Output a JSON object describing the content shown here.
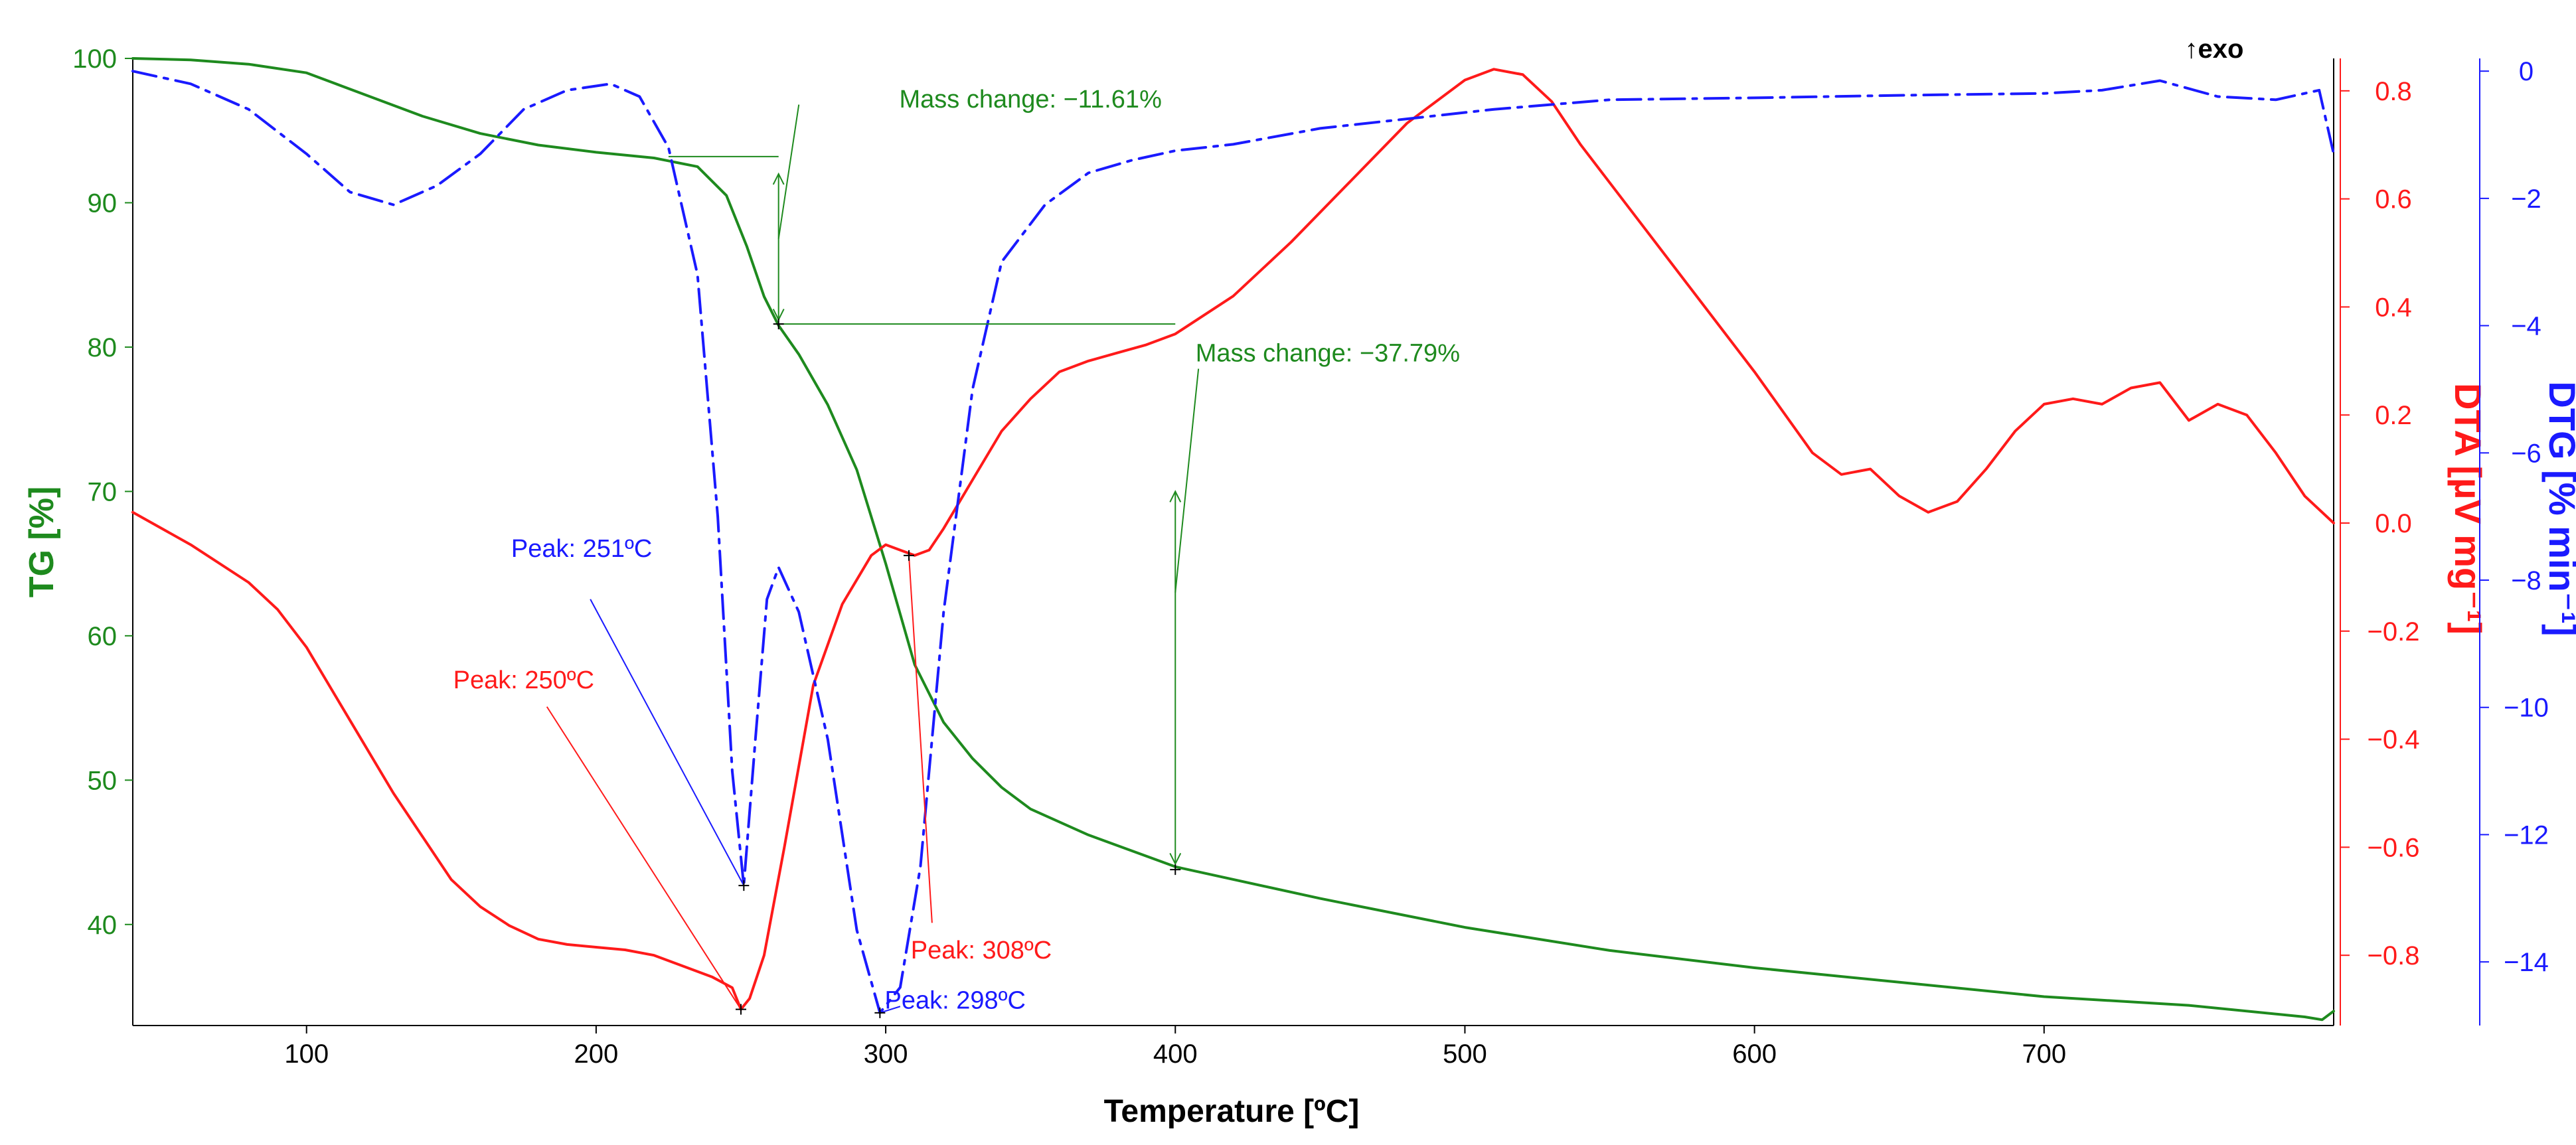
{
  "chart_data": {
    "type": "line",
    "title": "",
    "xlabel": "Temperature [ºC]",
    "xlim": [
      40,
      800
    ],
    "xticks": [
      100,
      200,
      300,
      400,
      500,
      600,
      700
    ],
    "axes": {
      "tg": {
        "label": "TG [%]",
        "color": "#1e8a1e",
        "ylim": [
          33,
          100
        ],
        "ticks": [
          40,
          50,
          60,
          70,
          80,
          90,
          100
        ]
      },
      "dta": {
        "label": "DTA [µV mg⁻¹]",
        "color": "#ff1a1a",
        "ylim": [
          -0.93,
          0.86
        ],
        "ticks": [
          -0.8,
          -0.6,
          -0.4,
          -0.2,
          0.0,
          0.2,
          0.4,
          0.6,
          0.8
        ],
        "tick_labels": [
          "−0.8",
          "−0.6",
          "−0.4",
          "−0.2",
          "0.0",
          "0.2",
          "0.4",
          "0.6",
          "0.8"
        ]
      },
      "dtg": {
        "label": "DTG [% min⁻¹]",
        "color": "#1a1aff",
        "ylim": [
          -15,
          0.2
        ],
        "ticks": [
          -14,
          -12,
          -10,
          -8,
          -6,
          -4,
          -2,
          0
        ],
        "tick_labels": [
          "−14",
          "−12",
          "−10",
          "−8",
          "−6",
          "−4",
          "−2",
          "0"
        ]
      }
    },
    "series": [
      {
        "name": "TG",
        "axis": "tg",
        "color": "#1e8a1e",
        "dash": "solid",
        "points": [
          [
            40,
            100
          ],
          [
            60,
            99.9
          ],
          [
            80,
            99.6
          ],
          [
            100,
            99
          ],
          [
            120,
            97.5
          ],
          [
            140,
            96
          ],
          [
            160,
            94.8
          ],
          [
            180,
            94
          ],
          [
            200,
            93.5
          ],
          [
            220,
            93.1
          ],
          [
            235,
            92.5
          ],
          [
            245,
            90.5
          ],
          [
            252,
            87
          ],
          [
            258,
            83.5
          ],
          [
            263,
            81.5
          ],
          [
            270,
            79.5
          ],
          [
            280,
            76
          ],
          [
            290,
            71.5
          ],
          [
            300,
            65
          ],
          [
            310,
            58
          ],
          [
            320,
            54
          ],
          [
            330,
            51.5
          ],
          [
            340,
            49.5
          ],
          [
            350,
            48
          ],
          [
            370,
            46.2
          ],
          [
            400,
            44
          ],
          [
            450,
            41.8
          ],
          [
            500,
            39.8
          ],
          [
            550,
            38.2
          ],
          [
            600,
            37
          ],
          [
            650,
            36
          ],
          [
            700,
            35
          ],
          [
            750,
            34.4
          ],
          [
            790,
            33.6
          ],
          [
            796,
            33.4
          ],
          [
            800,
            34
          ]
        ]
      },
      {
        "name": "DTA",
        "axis": "dta",
        "color": "#ff1a1a",
        "dash": "solid",
        "points": [
          [
            40,
            0.02
          ],
          [
            60,
            -0.04
          ],
          [
            80,
            -0.11
          ],
          [
            90,
            -0.16
          ],
          [
            100,
            -0.23
          ],
          [
            110,
            -0.32
          ],
          [
            120,
            -0.41
          ],
          [
            130,
            -0.5
          ],
          [
            140,
            -0.58
          ],
          [
            150,
            -0.66
          ],
          [
            160,
            -0.71
          ],
          [
            170,
            -0.745
          ],
          [
            180,
            -0.77
          ],
          [
            190,
            -0.78
          ],
          [
            200,
            -0.785
          ],
          [
            210,
            -0.79
          ],
          [
            220,
            -0.8
          ],
          [
            230,
            -0.82
          ],
          [
            240,
            -0.84
          ],
          [
            247,
            -0.86
          ],
          [
            250,
            -0.9
          ],
          [
            253,
            -0.88
          ],
          [
            258,
            -0.8
          ],
          [
            265,
            -0.6
          ],
          [
            275,
            -0.3
          ],
          [
            285,
            -0.15
          ],
          [
            295,
            -0.06
          ],
          [
            300,
            -0.04
          ],
          [
            305,
            -0.05
          ],
          [
            310,
            -0.06
          ],
          [
            315,
            -0.05
          ],
          [
            320,
            -0.01
          ],
          [
            330,
            0.08
          ],
          [
            340,
            0.17
          ],
          [
            350,
            0.23
          ],
          [
            360,
            0.28
          ],
          [
            370,
            0.3
          ],
          [
            380,
            0.315
          ],
          [
            390,
            0.33
          ],
          [
            400,
            0.35
          ],
          [
            420,
            0.42
          ],
          [
            440,
            0.52
          ],
          [
            460,
            0.63
          ],
          [
            480,
            0.74
          ],
          [
            500,
            0.82
          ],
          [
            510,
            0.84
          ],
          [
            520,
            0.83
          ],
          [
            530,
            0.78
          ],
          [
            540,
            0.7
          ],
          [
            560,
            0.56
          ],
          [
            580,
            0.42
          ],
          [
            600,
            0.28
          ],
          [
            620,
            0.13
          ],
          [
            630,
            0.09
          ],
          [
            640,
            0.1
          ],
          [
            650,
            0.05
          ],
          [
            660,
            0.02
          ],
          [
            670,
            0.04
          ],
          [
            680,
            0.1
          ],
          [
            690,
            0.17
          ],
          [
            700,
            0.22
          ],
          [
            710,
            0.23
          ],
          [
            720,
            0.22
          ],
          [
            730,
            0.25
          ],
          [
            740,
            0.26
          ],
          [
            750,
            0.19
          ],
          [
            760,
            0.22
          ],
          [
            770,
            0.2
          ],
          [
            780,
            0.13
          ],
          [
            790,
            0.05
          ],
          [
            800,
            0.0
          ]
        ]
      },
      {
        "name": "DTG",
        "axis": "dtg",
        "color": "#1a1aff",
        "dash": "dashdot",
        "points": [
          [
            40,
            0
          ],
          [
            60,
            -0.2
          ],
          [
            80,
            -0.6
          ],
          [
            100,
            -1.3
          ],
          [
            115,
            -1.9
          ],
          [
            130,
            -2.1
          ],
          [
            145,
            -1.8
          ],
          [
            160,
            -1.3
          ],
          [
            175,
            -0.6
          ],
          [
            190,
            -0.3
          ],
          [
            205,
            -0.2
          ],
          [
            215,
            -0.4
          ],
          [
            225,
            -1.2
          ],
          [
            235,
            -3.2
          ],
          [
            242,
            -7
          ],
          [
            247,
            -11
          ],
          [
            251,
            -12.8
          ],
          [
            255,
            -10.5
          ],
          [
            259,
            -8.3
          ],
          [
            263,
            -7.8
          ],
          [
            270,
            -8.5
          ],
          [
            280,
            -10.5
          ],
          [
            290,
            -13.5
          ],
          [
            298,
            -14.8
          ],
          [
            305,
            -14.4
          ],
          [
            312,
            -12.5
          ],
          [
            320,
            -8.5
          ],
          [
            330,
            -5
          ],
          [
            340,
            -3
          ],
          [
            355,
            -2.1
          ],
          [
            370,
            -1.6
          ],
          [
            385,
            -1.4
          ],
          [
            400,
            -1.25
          ],
          [
            420,
            -1.15
          ],
          [
            450,
            -0.9
          ],
          [
            480,
            -0.75
          ],
          [
            510,
            -0.6
          ],
          [
            550,
            -0.45
          ],
          [
            600,
            -0.42
          ],
          [
            650,
            -0.38
          ],
          [
            700,
            -0.35
          ],
          [
            720,
            -0.3
          ],
          [
            740,
            -0.15
          ],
          [
            760,
            -0.4
          ],
          [
            780,
            -0.45
          ],
          [
            795,
            -0.3
          ],
          [
            800,
            -1.3
          ]
        ]
      }
    ],
    "annotations": [
      {
        "text": "Mass change: −11.61%",
        "color": "#1e8a1e",
        "axis": "tg",
        "tx": 350,
        "ty": 97.2,
        "anchor": "middle",
        "lines": [
          [
            [
              225,
              93.2
            ],
            [
              263,
              93.2
            ]
          ],
          [
            [
              263,
              81.6
            ],
            [
              400,
              81.6
            ]
          ],
          [
            [
              263,
              92
            ],
            [
              263,
              81.9
            ]
          ],
          [
            [
              263,
              87.5
            ],
            [
              270,
              96.8
            ]
          ]
        ],
        "arrows": [
          [
            263,
            92
          ],
          [
            263,
            81.9
          ]
        ],
        "points": [
          [
            263,
            81.6
          ]
        ]
      },
      {
        "text": "Mass change: −37.79%",
        "color": "#1e8a1e",
        "axis": "tg",
        "tx": 407,
        "ty": 79.6,
        "anchor": "start",
        "lines": [
          [
            [
              400,
              70
            ],
            [
              400,
              44.2
            ]
          ],
          [
            [
              400,
              63
            ],
            [
              408,
              78.5
            ]
          ]
        ],
        "arrows": [
          [
            400,
            70
          ],
          [
            400,
            44.2
          ]
        ],
        "points": [
          [
            400,
            43.8
          ]
        ]
      },
      {
        "text": "Peak: 251ºC",
        "color": "#1a1aff",
        "axis": "dtg",
        "tx": 195,
        "ty": -7.5,
        "anchor": "middle",
        "lines": [
          [
            [
              251,
              -12.8
            ],
            [
              198,
              -8.3
            ]
          ]
        ],
        "points": [
          [
            251,
            -12.8
          ]
        ]
      },
      {
        "text": "Peak: 250ºC",
        "color": "#ff1a1a",
        "axis": "dta",
        "tx": 175,
        "ty": -0.29,
        "anchor": "middle",
        "lines": [
          [
            [
              250,
              -0.9
            ],
            [
              183,
              -0.34
            ]
          ]
        ],
        "points": [
          [
            250,
            -0.9
          ]
        ]
      },
      {
        "text": "Peak: 308ºC",
        "color": "#ff1a1a",
        "axis": "dta",
        "tx": 333,
        "ty": -0.79,
        "anchor": "middle",
        "lines": [
          [
            [
              308,
              -0.06
            ],
            [
              316,
              -0.74
            ]
          ]
        ],
        "points": [
          [
            308,
            -0.06
          ]
        ]
      },
      {
        "text": "Peak: 298ºC",
        "color": "#1a1aff",
        "axis": "dtg",
        "tx": 324,
        "ty": -14.6,
        "anchor": "middle",
        "lines": [
          [
            [
              298,
              -14.8
            ],
            [
              305,
              -14.7
            ]
          ]
        ],
        "points": [
          [
            298,
            -14.8
          ]
        ]
      }
    ],
    "exo_label": "↑exo"
  }
}
